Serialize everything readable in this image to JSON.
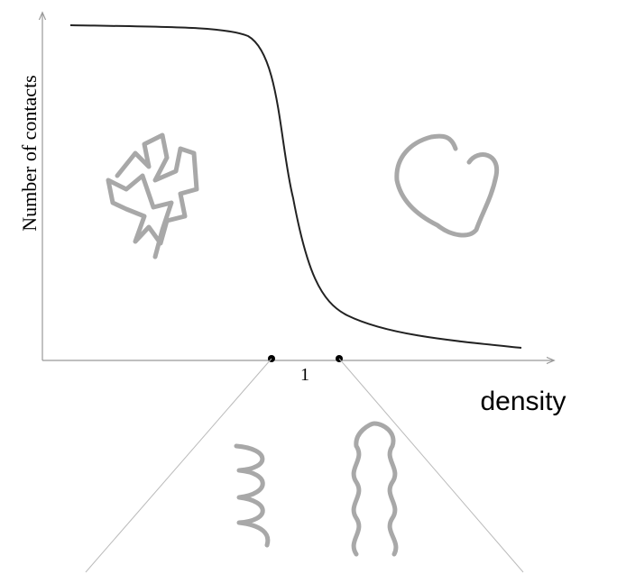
{
  "axis_labels": {
    "y": "Number of contacts",
    "x": "density"
  },
  "marker_label": "1"
}
